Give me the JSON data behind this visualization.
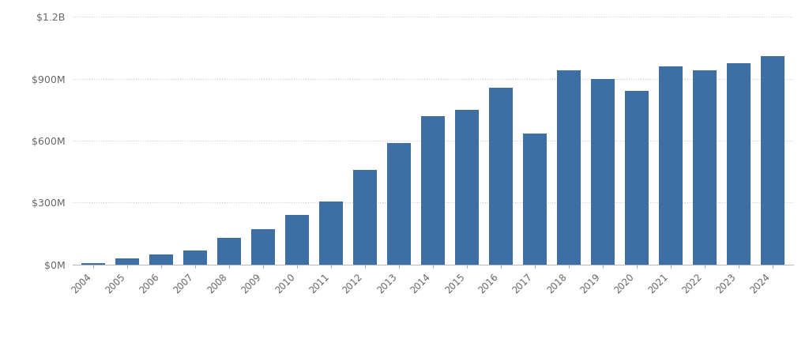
{
  "years": [
    2004,
    2005,
    2006,
    2007,
    2008,
    2009,
    2010,
    2011,
    2012,
    2013,
    2014,
    2015,
    2016,
    2017,
    2018,
    2019,
    2020,
    2021,
    2022,
    2023,
    2024
  ],
  "values": [
    5,
    28,
    48,
    68,
    130,
    170,
    240,
    305,
    460,
    590,
    720,
    750,
    855,
    635,
    940,
    900,
    840,
    960,
    940,
    975,
    1010
  ],
  "bar_color": "#3d6fa5",
  "background_color": "#ffffff",
  "ylim": [
    0,
    1200
  ],
  "yticks": [
    0,
    300,
    600,
    900,
    1200
  ],
  "ytick_labels": [
    "$0M",
    "$300M",
    "$600M",
    "$900M",
    "$1.2B"
  ],
  "grid_color": "#cccccc",
  "tick_color": "#aaaaaa",
  "spine_color": "#bbbbbb"
}
